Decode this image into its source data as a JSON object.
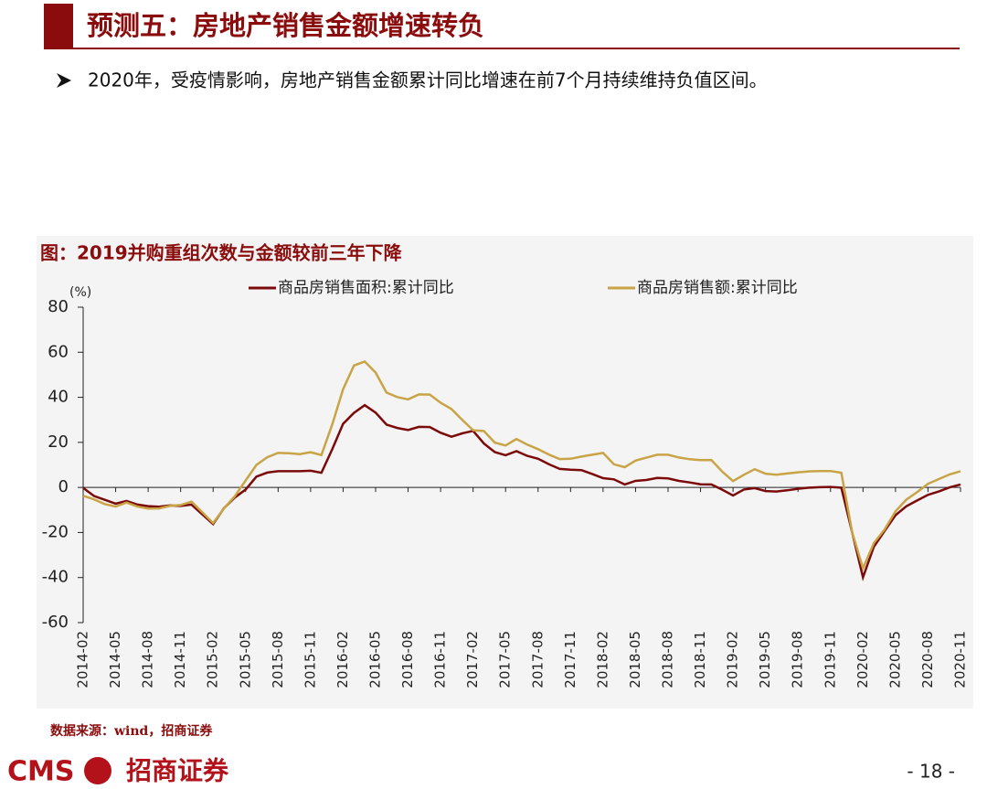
{
  "header": {
    "title": "预测五：房地产销售金额增速转负"
  },
  "bullet": "2020年，受疫情影响，房地产销售金额累计同比增速在前7个月持续维持负值区间。",
  "chart_data": {
    "type": "line",
    "title": "图：2019并购重组次数与金额较前三年下降",
    "y_unit": "(%)",
    "categories": [
      "2014-02",
      null,
      null,
      "2014-05",
      null,
      null,
      "2014-08",
      null,
      null,
      "2014-11",
      null,
      null,
      "2015-02",
      null,
      null,
      "2015-05",
      null,
      null,
      "2015-08",
      null,
      null,
      "2015-11",
      null,
      null,
      "2016-02",
      null,
      null,
      "2016-05",
      null,
      null,
      "2016-08",
      null,
      null,
      "2016-11",
      null,
      null,
      "2017-02",
      null,
      null,
      "2017-05",
      null,
      null,
      "2017-08",
      null,
      null,
      "2017-11",
      null,
      null,
      "2018-02",
      null,
      null,
      "2018-05",
      null,
      null,
      "2018-08",
      null,
      null,
      "2018-11",
      null,
      null,
      "2019-02",
      null,
      null,
      "2019-05",
      null,
      null,
      "2019-08",
      null,
      null,
      "2019-11",
      null,
      null,
      "2020-02",
      null,
      null,
      "2020-05",
      null,
      null,
      "2020-08",
      null,
      null,
      "2020-11"
    ],
    "series": [
      {
        "name": "商品房销售面积:累计同比",
        "color": "#7b0a0a",
        "values": [
          -0.2,
          -3.8,
          -5.5,
          -7.2,
          -6,
          -7.6,
          -8.3,
          -8.6,
          -8.0,
          -8.2,
          -7.6,
          -12,
          -16.3,
          -9.2,
          -4.5,
          -0.9,
          4.8,
          6.6,
          7.2,
          7.2,
          7.2,
          7.4,
          6.5,
          17,
          28.2,
          33.1,
          36.5,
          33.2,
          27.9,
          26.4,
          25.5,
          26.9,
          26.8,
          24.3,
          22.5,
          24,
          25.1,
          19.5,
          15.7,
          14.3,
          16.1,
          14.0,
          12.7,
          10.3,
          8.2,
          7.9,
          7.7,
          6,
          4.1,
          3.6,
          1.3,
          2.9,
          3.3,
          4.2,
          4.0,
          2.9,
          2.2,
          1.4,
          1.3,
          -1,
          -3.6,
          -0.9,
          -0.3,
          -1.6,
          -1.8,
          -1.3,
          -0.6,
          -0.1,
          0.1,
          0.2,
          -0.1,
          -20,
          -39.9,
          -26.3,
          -19.3,
          -12.3,
          -8.4,
          -5.8,
          -3.3,
          -1.8,
          0,
          1.3
        ]
      },
      {
        "name": "商品房销售额:累计同比",
        "color": "#c9a447",
        "values": [
          -3.7,
          -5.3,
          -7.4,
          -8.5,
          -6.7,
          -8.5,
          -9.4,
          -9.3,
          -8.2,
          -7.8,
          -6.3,
          -11,
          -15.8,
          -9.3,
          -3.9,
          3.1,
          10.0,
          13.4,
          15.3,
          15.2,
          14.8,
          15.6,
          14.4,
          28,
          43.6,
          54.1,
          55.9,
          51.0,
          42.1,
          40.1,
          39.1,
          41.3,
          41.2,
          37.6,
          34.8,
          30,
          25.4,
          25.0,
          19.9,
          18.6,
          21.5,
          19.0,
          17.0,
          14.6,
          12.6,
          12.7,
          13.7,
          14.5,
          15.3,
          10.3,
          9.0,
          11.9,
          13.2,
          14.5,
          14.5,
          13.3,
          12.5,
          12.1,
          12.2,
          7,
          2.8,
          5.6,
          8.1,
          6.1,
          5.6,
          6.2,
          6.7,
          7.1,
          7.3,
          7.3,
          6.5,
          -20,
          -35.9,
          -24.7,
          -18.6,
          -10.6,
          -5.4,
          -2.1,
          1.6,
          3.7,
          5.8,
          7.2
        ]
      }
    ],
    "ylim": [
      -60,
      80
    ],
    "yticks": [
      -60,
      -40,
      -20,
      0,
      20,
      40,
      60,
      80
    ]
  },
  "source": "数据来源：wind，招商证券",
  "footer": {
    "logo": "CMS",
    "company": "招商证券",
    "page": "- 18 -"
  }
}
